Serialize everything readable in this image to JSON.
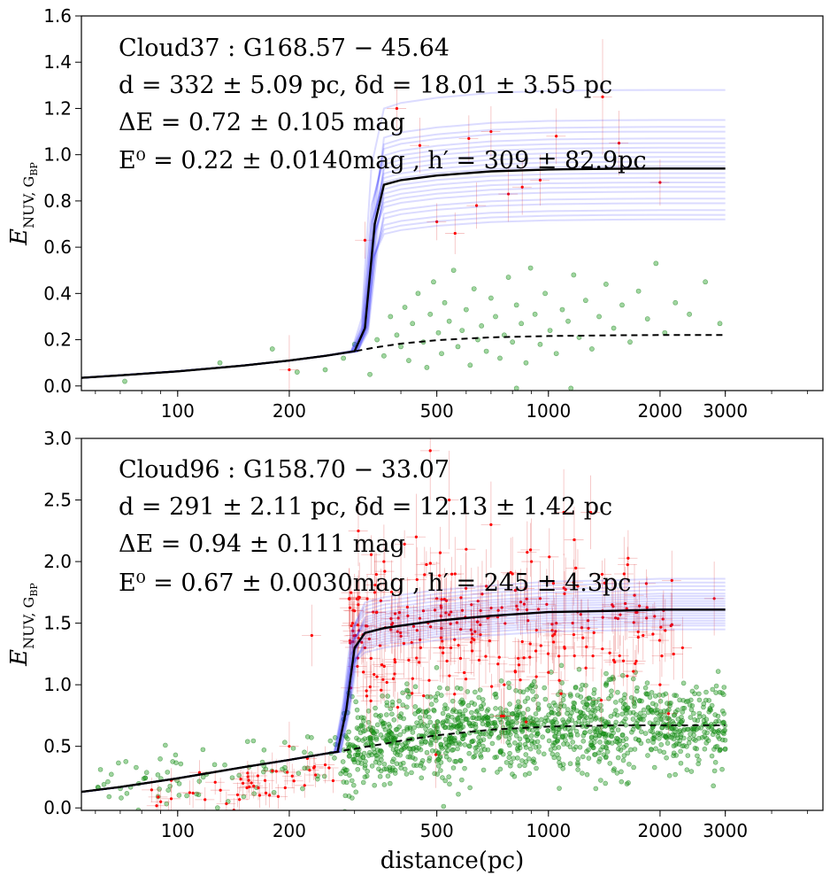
{
  "chart_data": [
    {
      "type": "scatter",
      "panel": "top",
      "xscale": "log",
      "xlim": [
        55,
        5500
      ],
      "ylim": [
        -0.02,
        1.6
      ],
      "yticks": [
        "0.0",
        "0.2",
        "0.4",
        "0.6",
        "0.8",
        "1.0",
        "1.2",
        "1.4",
        "1.6"
      ],
      "xticks": [
        "100",
        "200",
        "500",
        "1000",
        "2000",
        "3000"
      ],
      "ylabel": "E_NUV,G_BP",
      "annotations": [
        "Cloud37 : G168.57 − 45.64",
        "d = 332 ± 5.09 pc, δd = 18.01 ± 3.55 pc",
        "ΔE = 0.72 ± 0.105 mag",
        "E⁰ = 0.22 ± 0.0140mag , h′ = 309 ± 82.9pc"
      ],
      "model": {
        "d": 332,
        "d_err": 5.09,
        "delta_d": 18.01,
        "delta_d_err": 3.55,
        "deltaE": 0.72,
        "deltaE_err": 0.105,
        "E0": 0.22,
        "E0_err": 0.014,
        "h": 309,
        "h_err": 82.9
      },
      "curve_x": [
        55,
        70,
        100,
        150,
        200,
        250,
        300,
        320,
        340,
        360,
        400,
        500,
        700,
        1000,
        1500,
        2000,
        3000
      ],
      "foreground_curve_y": [
        0.035,
        0.046,
        0.063,
        0.088,
        0.11,
        0.13,
        0.15,
        0.158,
        0.166,
        0.172,
        0.183,
        0.198,
        0.21,
        0.216,
        0.219,
        0.22,
        0.22
      ],
      "best_fit_curve_y": [
        0.035,
        0.046,
        0.063,
        0.088,
        0.11,
        0.13,
        0.15,
        0.25,
        0.7,
        0.87,
        0.89,
        0.91,
        0.928,
        0.936,
        0.939,
        0.94,
        0.94
      ],
      "sample_curve_plateaus": [
        0.72,
        0.74,
        0.76,
        0.79,
        0.81,
        0.84,
        0.86,
        0.88,
        0.9,
        0.92,
        0.95,
        0.97,
        0.99,
        1.01,
        1.03,
        1.05,
        1.07,
        1.1,
        1.12,
        1.15,
        1.28
      ],
      "on_cloud_stars": [
        [
          200,
          0.07,
          0.15
        ],
        [
          320,
          0.63,
          0.08
        ],
        [
          390,
          1.2,
          0.1
        ],
        [
          450,
          1.04,
          0.12
        ],
        [
          500,
          0.71,
          0.08
        ],
        [
          560,
          0.66,
          0.09
        ],
        [
          610,
          1.07,
          0.1
        ],
        [
          640,
          0.78,
          0.1
        ],
        [
          700,
          1.1,
          0.11
        ],
        [
          780,
          0.83,
          0.12
        ],
        [
          850,
          0.86,
          0.12
        ],
        [
          950,
          0.89,
          0.11
        ],
        [
          1050,
          1.08,
          0.12
        ],
        [
          1400,
          1.25,
          0.25
        ],
        [
          1550,
          1.05,
          0.14
        ],
        [
          2000,
          0.88,
          0.1
        ]
      ],
      "off_cloud_stars": [
        [
          72,
          0.02
        ],
        [
          130,
          0.1
        ],
        [
          180,
          0.16
        ],
        [
          210,
          0.06
        ],
        [
          250,
          0.07
        ],
        [
          280,
          0.12
        ],
        [
          300,
          0.18
        ],
        [
          330,
          0.05
        ],
        [
          345,
          0.2
        ],
        [
          360,
          0.13
        ],
        [
          375,
          0.3
        ],
        [
          390,
          0.22
        ],
        [
          400,
          0.17
        ],
        [
          410,
          0.34
        ],
        [
          420,
          0.11
        ],
        [
          430,
          0.27
        ],
        [
          445,
          0.4
        ],
        [
          460,
          0.19
        ],
        [
          470,
          0.08
        ],
        [
          480,
          0.31
        ],
        [
          490,
          0.45
        ],
        [
          505,
          0.23
        ],
        [
          515,
          0.14
        ],
        [
          525,
          0.36
        ],
        [
          540,
          0.28
        ],
        [
          555,
          0.5
        ],
        [
          570,
          0.17
        ],
        [
          585,
          0.24
        ],
        [
          600,
          0.33
        ],
        [
          615,
          0.09
        ],
        [
          630,
          0.42
        ],
        [
          645,
          0.2
        ],
        [
          660,
          0.26
        ],
        [
          680,
          0.15
        ],
        [
          700,
          0.38
        ],
        [
          720,
          0.3
        ],
        [
          740,
          0.12
        ],
        [
          760,
          0.22
        ],
        [
          780,
          0.47
        ],
        [
          800,
          0.19
        ],
        [
          820,
          0.35
        ],
        [
          845,
          0.27
        ],
        [
          870,
          0.1
        ],
        [
          895,
          0.51
        ],
        [
          920,
          0.31
        ],
        [
          950,
          0.18
        ],
        [
          980,
          0.4
        ],
        [
          1010,
          0.24
        ],
        [
          1050,
          0.14
        ],
        [
          1090,
          0.33
        ],
        [
          1130,
          0.28
        ],
        [
          1170,
          0.48
        ],
        [
          1210,
          0.21
        ],
        [
          1260,
          0.37
        ],
        [
          1310,
          0.16
        ],
        [
          1370,
          0.3
        ],
        [
          1430,
          0.44
        ],
        [
          1500,
          0.25
        ],
        [
          1580,
          0.35
        ],
        [
          1660,
          0.19
        ],
        [
          1750,
          0.41
        ],
        [
          1850,
          0.29
        ],
        [
          1950,
          0.53
        ],
        [
          2060,
          0.23
        ],
        [
          2200,
          0.36
        ],
        [
          2400,
          0.31
        ],
        [
          2650,
          0.45
        ],
        [
          2900,
          0.27
        ],
        [
          1150,
          -0.01
        ],
        [
          820,
          -0.01
        ]
      ]
    },
    {
      "type": "scatter",
      "panel": "bottom",
      "xscale": "log",
      "xlim": [
        55,
        5500
      ],
      "ylim": [
        -0.02,
        3.0
      ],
      "yticks": [
        "0.0",
        "0.5",
        "1.0",
        "1.5",
        "2.0",
        "2.5",
        "3.0"
      ],
      "xticks": [
        "100",
        "200",
        "500",
        "1000",
        "2000",
        "3000"
      ],
      "xlabel": "distance(pc)",
      "ylabel": "E_NUV,G_BP",
      "annotations": [
        "Cloud96 : G158.70 − 33.07",
        "d = 291 ± 2.11 pc, δd = 12.13 ± 1.42 pc",
        "ΔE = 0.94 ± 0.111 mag",
        "E⁰ = 0.67 ± 0.0030mag , h′ = 245 ± 4.3pc"
      ],
      "model": {
        "d": 291,
        "d_err": 2.11,
        "delta_d": 12.13,
        "delta_d_err": 1.42,
        "deltaE": 0.94,
        "deltaE_err": 0.111,
        "E0": 0.67,
        "E0_err": 0.003,
        "h": 245,
        "h_err": 4.3
      },
      "curve_x": [
        55,
        70,
        100,
        150,
        200,
        250,
        270,
        285,
        300,
        320,
        360,
        400,
        500,
        700,
        1000,
        1500,
        2000,
        3000
      ],
      "foreground_curve_y": [
        0.13,
        0.17,
        0.24,
        0.33,
        0.39,
        0.44,
        0.455,
        0.47,
        0.48,
        0.495,
        0.52,
        0.545,
        0.59,
        0.635,
        0.66,
        0.67,
        0.67,
        0.67
      ],
      "best_fit_curve_y": [
        0.13,
        0.17,
        0.24,
        0.33,
        0.39,
        0.44,
        0.455,
        0.8,
        1.3,
        1.42,
        1.46,
        1.48,
        1.52,
        1.56,
        1.59,
        1.6,
        1.61,
        1.61
      ],
      "sample_curve_plateaus": [
        1.45,
        1.48,
        1.5,
        1.52,
        1.54,
        1.56,
        1.58,
        1.6,
        1.62,
        1.64,
        1.66,
        1.68,
        1.7,
        1.72,
        1.74,
        1.77,
        1.8,
        1.83,
        1.86
      ],
      "on_cloud_stars": [
        [
          90,
          0.05,
          0.1
        ],
        [
          110,
          0.12,
          0.12
        ],
        [
          150,
          0.2,
          0.1
        ],
        [
          180,
          0.3,
          0.15
        ],
        [
          200,
          0.5,
          0.2
        ],
        [
          230,
          1.4,
          0.25
        ],
        [
          250,
          0.35,
          0.15
        ],
        [
          300,
          1.6,
          0.3
        ],
        [
          320,
          1.3,
          0.25
        ],
        [
          340,
          1.75,
          0.3
        ],
        [
          360,
          2.0,
          0.3
        ],
        [
          380,
          1.5,
          0.25
        ],
        [
          400,
          1.85,
          0.3
        ],
        [
          420,
          1.2,
          0.25
        ],
        [
          440,
          2.2,
          0.35
        ],
        [
          460,
          1.6,
          0.3
        ],
        [
          480,
          2.9,
          0.4
        ],
        [
          500,
          1.7,
          0.3
        ],
        [
          520,
          1.3,
          0.25
        ],
        [
          540,
          2.5,
          0.4
        ],
        [
          560,
          1.9,
          0.3
        ],
        [
          580,
          1.45,
          0.25
        ],
        [
          600,
          2.1,
          0.35
        ],
        [
          620,
          1.65,
          0.3
        ],
        [
          650,
          1.2,
          0.25
        ],
        [
          680,
          1.8,
          0.3
        ],
        [
          700,
          2.3,
          0.35
        ],
        [
          730,
          1.55,
          0.3
        ],
        [
          760,
          1.0,
          0.2
        ],
        [
          800,
          1.9,
          0.3
        ],
        [
          850,
          1.35,
          0.25
        ],
        [
          900,
          2.0,
          0.35
        ],
        [
          950,
          1.7,
          0.3
        ],
        [
          1000,
          1.1,
          0.25
        ],
        [
          1050,
          1.5,
          0.25
        ],
        [
          1100,
          2.4,
          0.35
        ],
        [
          1200,
          1.8,
          0.3
        ],
        [
          1300,
          2.4,
          0.3
        ],
        [
          1400,
          1.6,
          0.25
        ],
        [
          1500,
          1.2,
          0.2
        ],
        [
          1600,
          1.9,
          0.3
        ],
        [
          1800,
          1.4,
          0.2
        ],
        [
          2000,
          1.0,
          0.2
        ],
        [
          2300,
          1.3,
          0.25
        ],
        [
          2800,
          1.7,
          0.3
        ]
      ],
      "off_cloud_stars_description_note": "dense cloud of green points",
      "off_cloud_stars_count": 1400,
      "off_cloud_stars_seed": 7
    }
  ]
}
